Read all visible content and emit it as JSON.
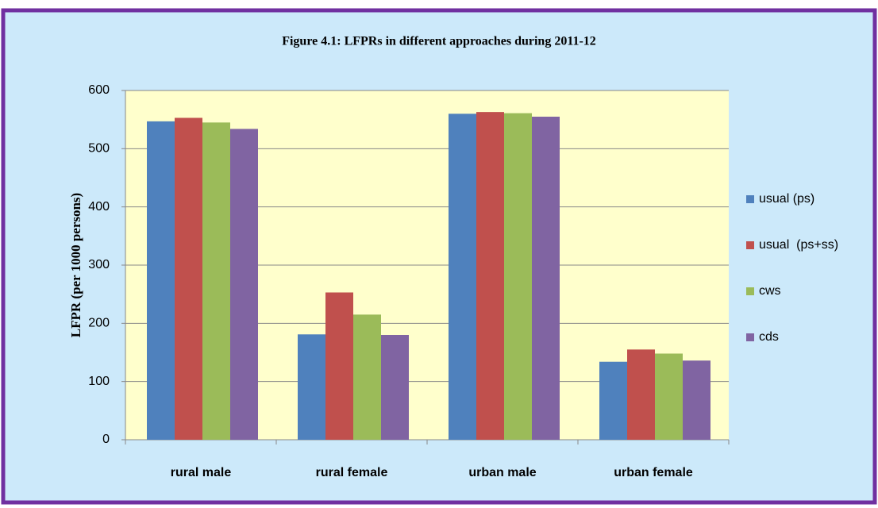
{
  "chart_data": {
    "type": "bar",
    "title": "Figure 4.1: LFPRs in different approaches during 2011-12",
    "y_label": "LFPR (per 1000 persons)",
    "categories": [
      "rural male",
      "rural female",
      "urban male",
      "urban female"
    ],
    "series": [
      {
        "name": "usual (ps)",
        "color": "#4f81bd",
        "values": [
          547,
          181,
          560,
          134
        ]
      },
      {
        "name": "usual  (ps+ss)",
        "color": "#c0504d",
        "values": [
          553,
          253,
          563,
          155
        ]
      },
      {
        "name": "cws",
        "color": "#9bbb59",
        "values": [
          545,
          215,
          561,
          148
        ]
      },
      {
        "name": "cds",
        "color": "#8064a2",
        "values": [
          534,
          180,
          555,
          136
        ]
      }
    ],
    "ylim": [
      0,
      600
    ],
    "yticks": [
      0,
      100,
      200,
      300,
      400,
      500,
      600
    ],
    "grid": true,
    "legend": "right"
  }
}
